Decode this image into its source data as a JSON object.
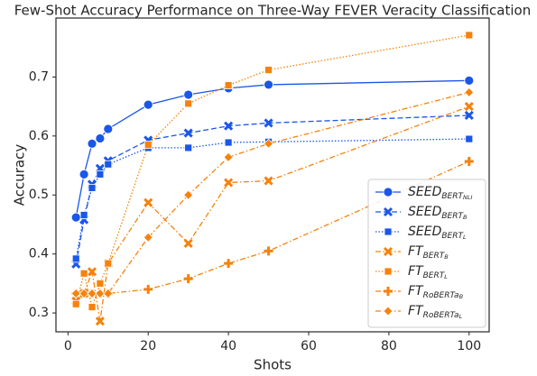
{
  "chart_data": {
    "type": "line",
    "title": "Few-Shot Accuracy Performance on Three-Way FEVER Veracity Classification",
    "xlabel": "Shots",
    "ylabel": "Accuracy",
    "x": [
      2,
      4,
      6,
      8,
      10,
      20,
      30,
      40,
      50,
      100
    ],
    "xlim": [
      -3,
      105
    ],
    "xticks": [
      0,
      20,
      40,
      60,
      80,
      100
    ],
    "ylim": [
      0.268,
      0.8
    ],
    "yticks": [
      0.3,
      0.4,
      0.5,
      0.6,
      0.7
    ],
    "grid": false,
    "legend": "lower right",
    "series": [
      {
        "name": "SEED",
        "sub": "BERT",
        "subsub": "NLI",
        "color": "#1a56e8",
        "marker": "circle",
        "dash": "solid",
        "values": [
          0.462,
          0.535,
          0.587,
          0.596,
          0.612,
          0.653,
          0.67,
          0.681,
          0.687,
          0.694
        ]
      },
      {
        "name": "SEED",
        "sub": "BERT",
        "subsub": "B",
        "color": "#1a56e8",
        "marker": "x",
        "dash": "dashed",
        "values": [
          0.383,
          0.458,
          0.518,
          0.545,
          0.558,
          0.593,
          0.605,
          0.617,
          0.622,
          0.635
        ]
      },
      {
        "name": "SEED",
        "sub": "BERT",
        "subsub": "L",
        "color": "#1a56e8",
        "marker": "square",
        "dash": "dotted",
        "values": [
          0.392,
          0.466,
          0.512,
          0.535,
          0.552,
          0.58,
          0.58,
          0.589,
          0.59,
          0.595
        ]
      },
      {
        "name": "FT",
        "sub": "BERT",
        "subsub": "B",
        "color": "#f5820d",
        "marker": "x",
        "dash": "dashdot",
        "values": [
          0.32,
          0.333,
          0.37,
          0.286,
          0.384,
          0.487,
          0.418,
          0.521,
          0.524,
          0.65
        ]
      },
      {
        "name": "FT",
        "sub": "BERT",
        "subsub": "L",
        "color": "#f5820d",
        "marker": "square",
        "dash": "dotted",
        "values": [
          0.315,
          0.367,
          0.31,
          0.35,
          0.384,
          0.585,
          0.655,
          0.686,
          0.712,
          0.771
        ]
      },
      {
        "name": "FT",
        "sub": "RoBERTa",
        "subsub": "B",
        "color": "#f5820d",
        "marker": "plus",
        "dash": "dashdot",
        "values": [
          0.333,
          0.333,
          0.333,
          0.333,
          0.333,
          0.34,
          0.358,
          0.384,
          0.405,
          0.557
        ]
      },
      {
        "name": "FT",
        "sub": "RoBERTa",
        "subsub": "L",
        "color": "#f5820d",
        "marker": "diamond",
        "dash": "dashdot",
        "values": [
          0.333,
          0.333,
          0.333,
          0.333,
          0.333,
          0.428,
          0.5,
          0.564,
          0.587,
          0.674
        ]
      }
    ]
  }
}
